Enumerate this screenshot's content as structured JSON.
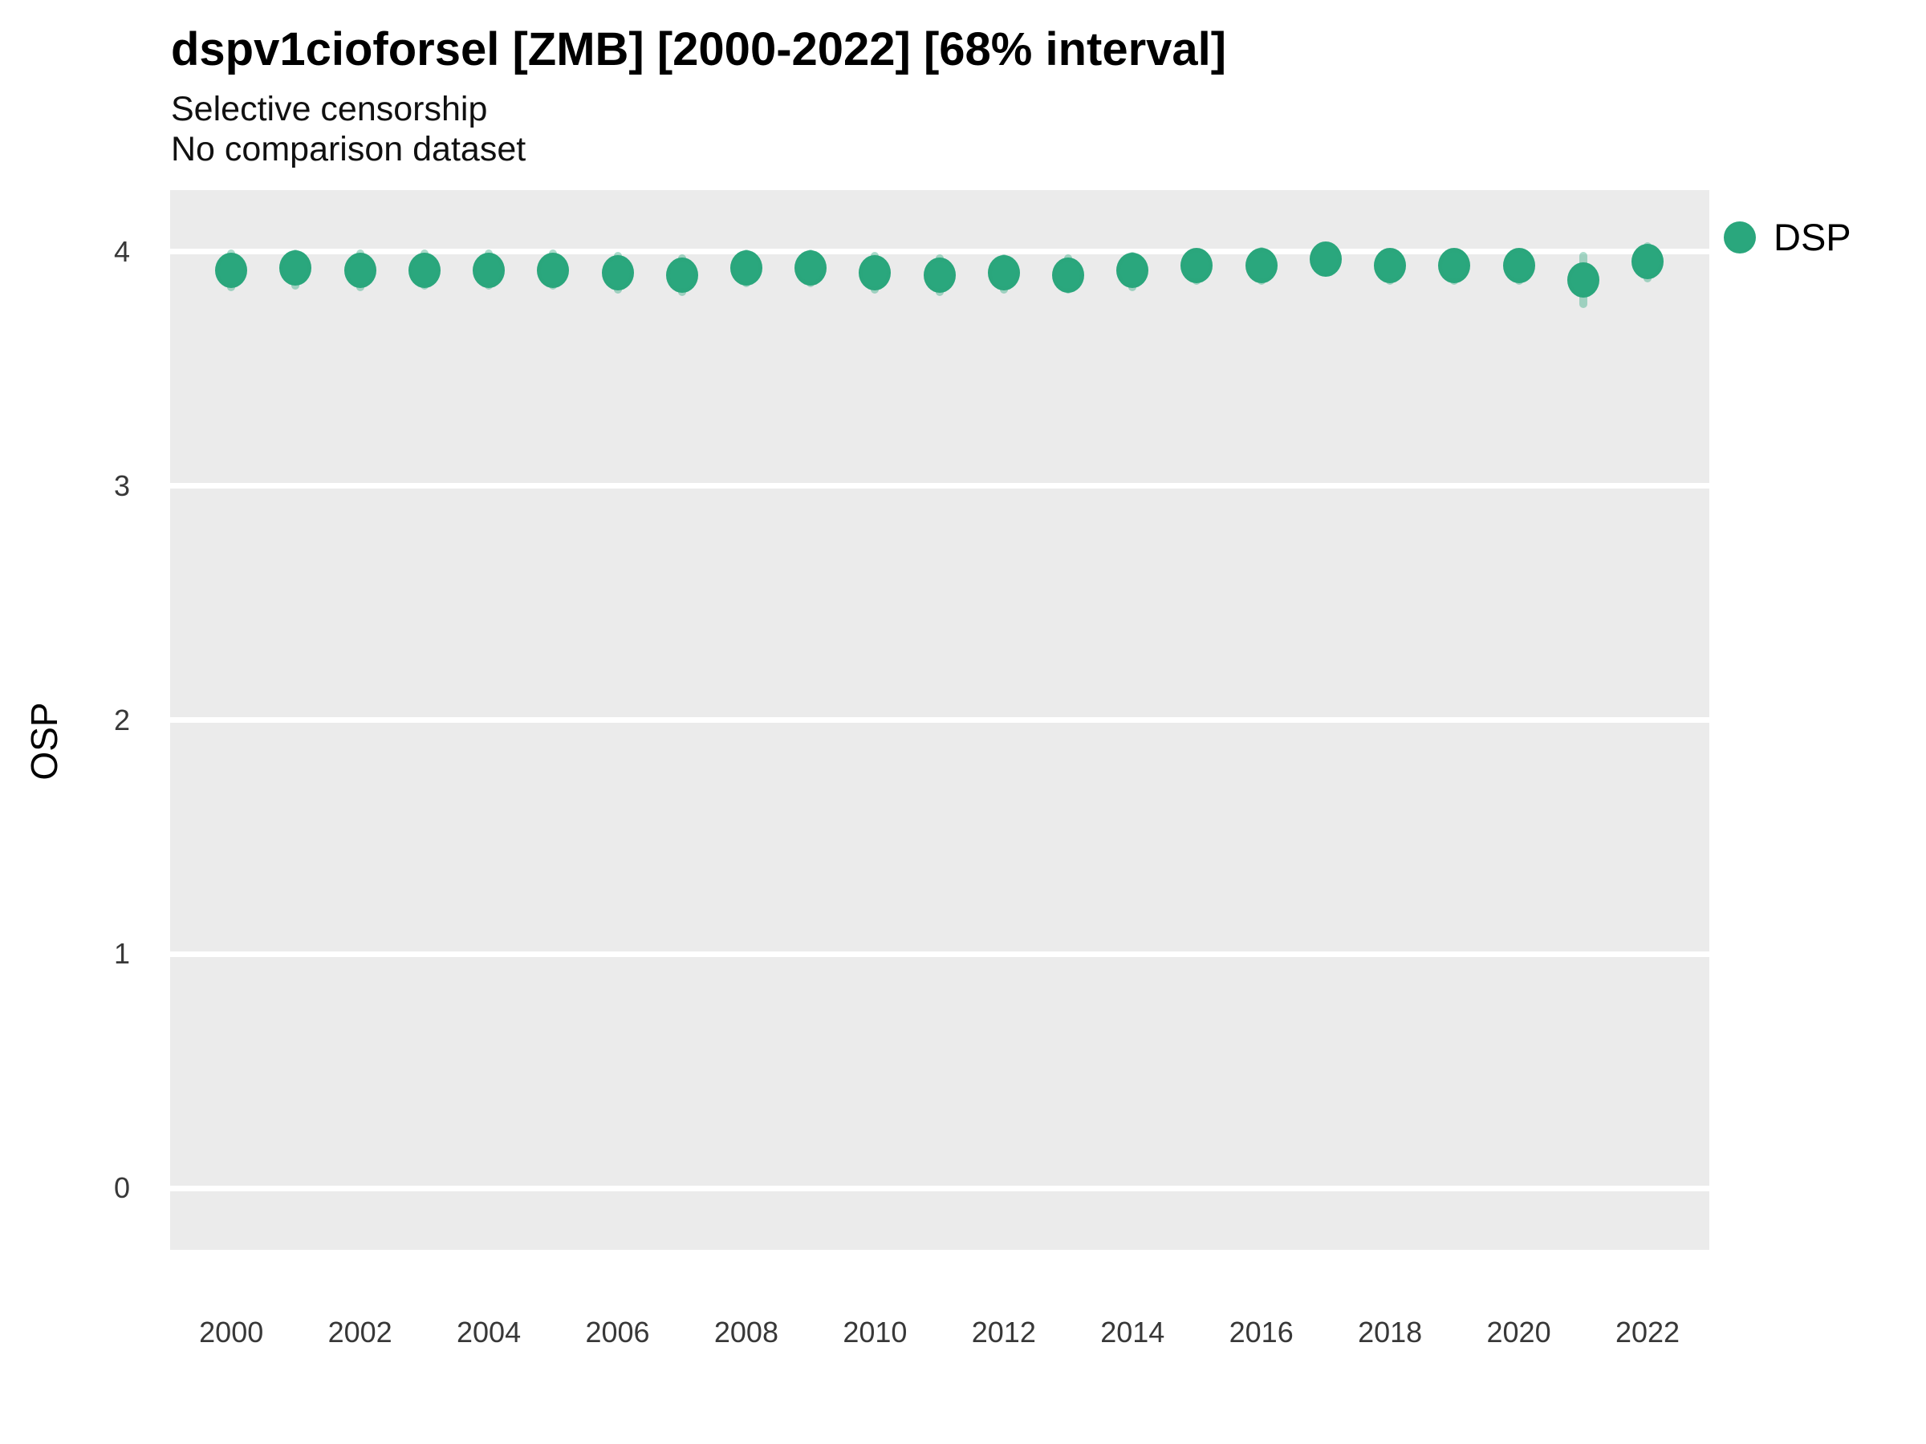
{
  "header": {
    "title": "dspv1cioforsel [ZMB] [2000-2022] [68% interval]",
    "subtitle_line1": "Selective censorship",
    "subtitle_line2": "No comparison dataset"
  },
  "legend": {
    "position": "right-top",
    "items": [
      {
        "label": "DSP",
        "marker": "circle",
        "color": "#2aa77d"
      }
    ]
  },
  "colors": {
    "panel_background": "#EBEBEB",
    "gridline": "#ffffff",
    "point": "#2aa77d",
    "interval_bar": "rgba(43,167,125,0.40)",
    "axis_text": "#383838"
  },
  "chart_data": {
    "type": "scatter",
    "title": "dspv1cioforsel [ZMB] [2000-2022] [68% interval]",
    "subtitle": "Selective censorship\nNo comparison dataset",
    "xlabel": "",
    "ylabel": "OSP",
    "xlim": [
      1999.05,
      2022.96
    ],
    "ylim": [
      -0.2635,
      4.2635
    ],
    "grid": "horizontal-major-only",
    "legend_position": "right-top",
    "x_ticks": [
      2000,
      2002,
      2004,
      2006,
      2008,
      2010,
      2012,
      2014,
      2016,
      2018,
      2020,
      2022
    ],
    "y_ticks": [
      0,
      1,
      2,
      3,
      4
    ],
    "interval_label": "68% interval",
    "series": [
      {
        "name": "DSP",
        "x": [
          2000,
          2001,
          2002,
          2003,
          2004,
          2005,
          2006,
          2007,
          2008,
          2009,
          2010,
          2011,
          2012,
          2013,
          2014,
          2015,
          2016,
          2017,
          2018,
          2019,
          2020,
          2021,
          2022
        ],
        "values": [
          3.92,
          3.93,
          3.92,
          3.92,
          3.92,
          3.92,
          3.91,
          3.9,
          3.93,
          3.93,
          3.91,
          3.9,
          3.91,
          3.9,
          3.92,
          3.94,
          3.94,
          3.97,
          3.94,
          3.94,
          3.94,
          3.88,
          3.96
        ],
        "lo": [
          3.83,
          3.84,
          3.83,
          3.84,
          3.84,
          3.84,
          3.82,
          3.81,
          3.85,
          3.85,
          3.82,
          3.81,
          3.82,
          3.82,
          3.83,
          3.86,
          3.86,
          3.9,
          3.86,
          3.86,
          3.86,
          3.76,
          3.87
        ],
        "hi": [
          4.01,
          4.01,
          4.01,
          4.01,
          4.01,
          4.01,
          4.0,
          3.99,
          4.01,
          4.01,
          4.0,
          3.99,
          3.99,
          3.99,
          4.0,
          4.01,
          4.02,
          4.03,
          4.01,
          4.01,
          4.01,
          4.0,
          4.04
        ]
      }
    ]
  }
}
